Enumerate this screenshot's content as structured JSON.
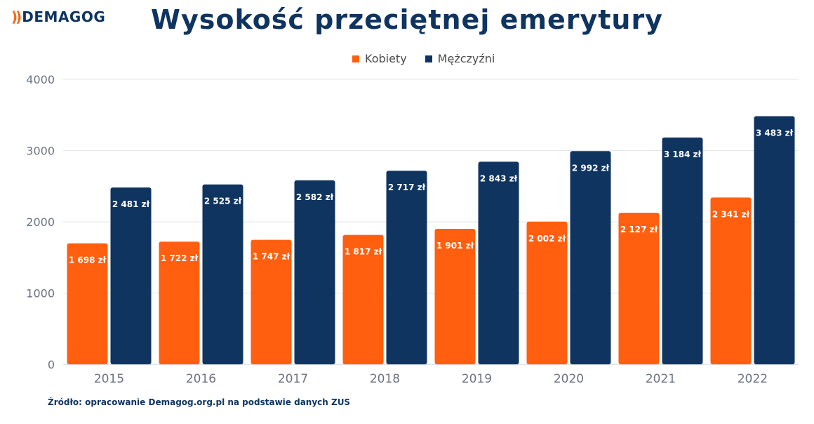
{
  "brand": {
    "mark": "))",
    "name": "DEMAGOG"
  },
  "colors": {
    "women": "#ff5f0f",
    "men": "#0f3460",
    "grid": "#e3e6ea",
    "axis_text": "#6b7380"
  },
  "chart_data": {
    "type": "bar",
    "title": "Wysokość przeciętnej emerytury",
    "categories": [
      "2015",
      "2016",
      "2017",
      "2018",
      "2019",
      "2020",
      "2021",
      "2022"
    ],
    "series": [
      {
        "name": "Kobiety",
        "values": [
          1698,
          1722,
          1747,
          1817,
          1901,
          2002,
          2127,
          2341
        ],
        "labels": [
          "1 698 zł",
          "1 722 zł",
          "1 747 zł",
          "1 817 zł",
          "1 901 zł",
          "2 002 zł",
          "2 127 zł",
          "2 341 zł"
        ]
      },
      {
        "name": "Mężczyźni",
        "values": [
          2481,
          2525,
          2582,
          2717,
          2843,
          2992,
          3184,
          3483
        ],
        "labels": [
          "2 481 zł",
          "2 525 zł",
          "2 582 zł",
          "2 717 zł",
          "2 843 zł",
          "2 992 zł",
          "3 184 zł",
          "3 483 zł"
        ]
      }
    ],
    "y_ticks": [
      "0",
      "1000",
      "2000",
      "3000",
      "4000"
    ],
    "ylim": [
      0,
      4000
    ],
    "grid": true,
    "legend": "top-center"
  },
  "source": "Źródło: opracowanie Demagog.org.pl na podstawie danych ZUS"
}
